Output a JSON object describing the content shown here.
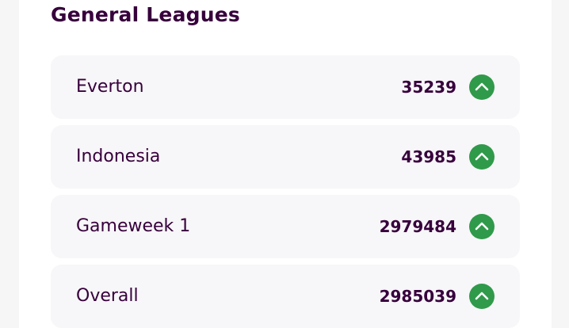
{
  "header": {
    "title": "General Leagues"
  },
  "leagues": [
    {
      "name": "Everton",
      "rank": 35239
    },
    {
      "name": "Indonesia",
      "rank": 43985
    },
    {
      "name": "Gameweek 1",
      "rank": 2979484
    },
    {
      "name": "Overall",
      "rank": 2985039
    }
  ]
}
